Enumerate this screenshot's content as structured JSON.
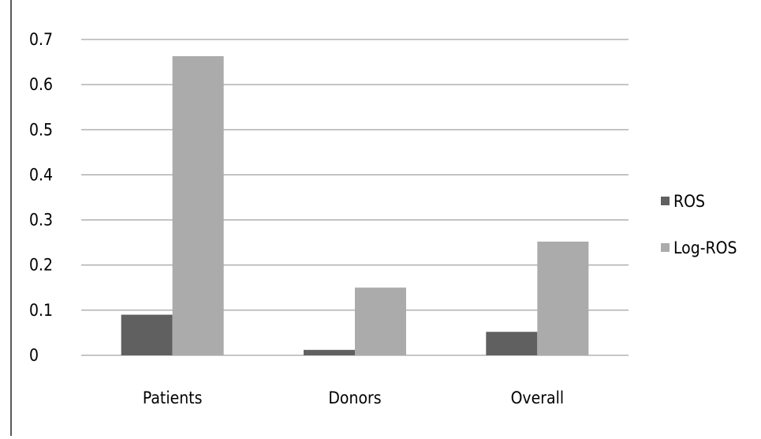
{
  "chart_data": {
    "type": "bar",
    "categories": [
      "Patients",
      "Donors",
      "Overall"
    ],
    "series": [
      {
        "name": "ROS",
        "values": [
          0.09,
          0.012,
          0.052
        ],
        "color": "#606060"
      },
      {
        "name": "Log-ROS",
        "values": [
          0.663,
          0.15,
          0.252
        ],
        "color": "#ababab"
      }
    ],
    "ylim": [
      0,
      0.7
    ],
    "yticks": [
      "0",
      "0.1",
      "0.2",
      "0.3",
      "0.4",
      "0.5",
      "0.6",
      "0.7"
    ],
    "grid": true,
    "legend": "right",
    "title": "",
    "xlabel": "",
    "ylabel": ""
  }
}
